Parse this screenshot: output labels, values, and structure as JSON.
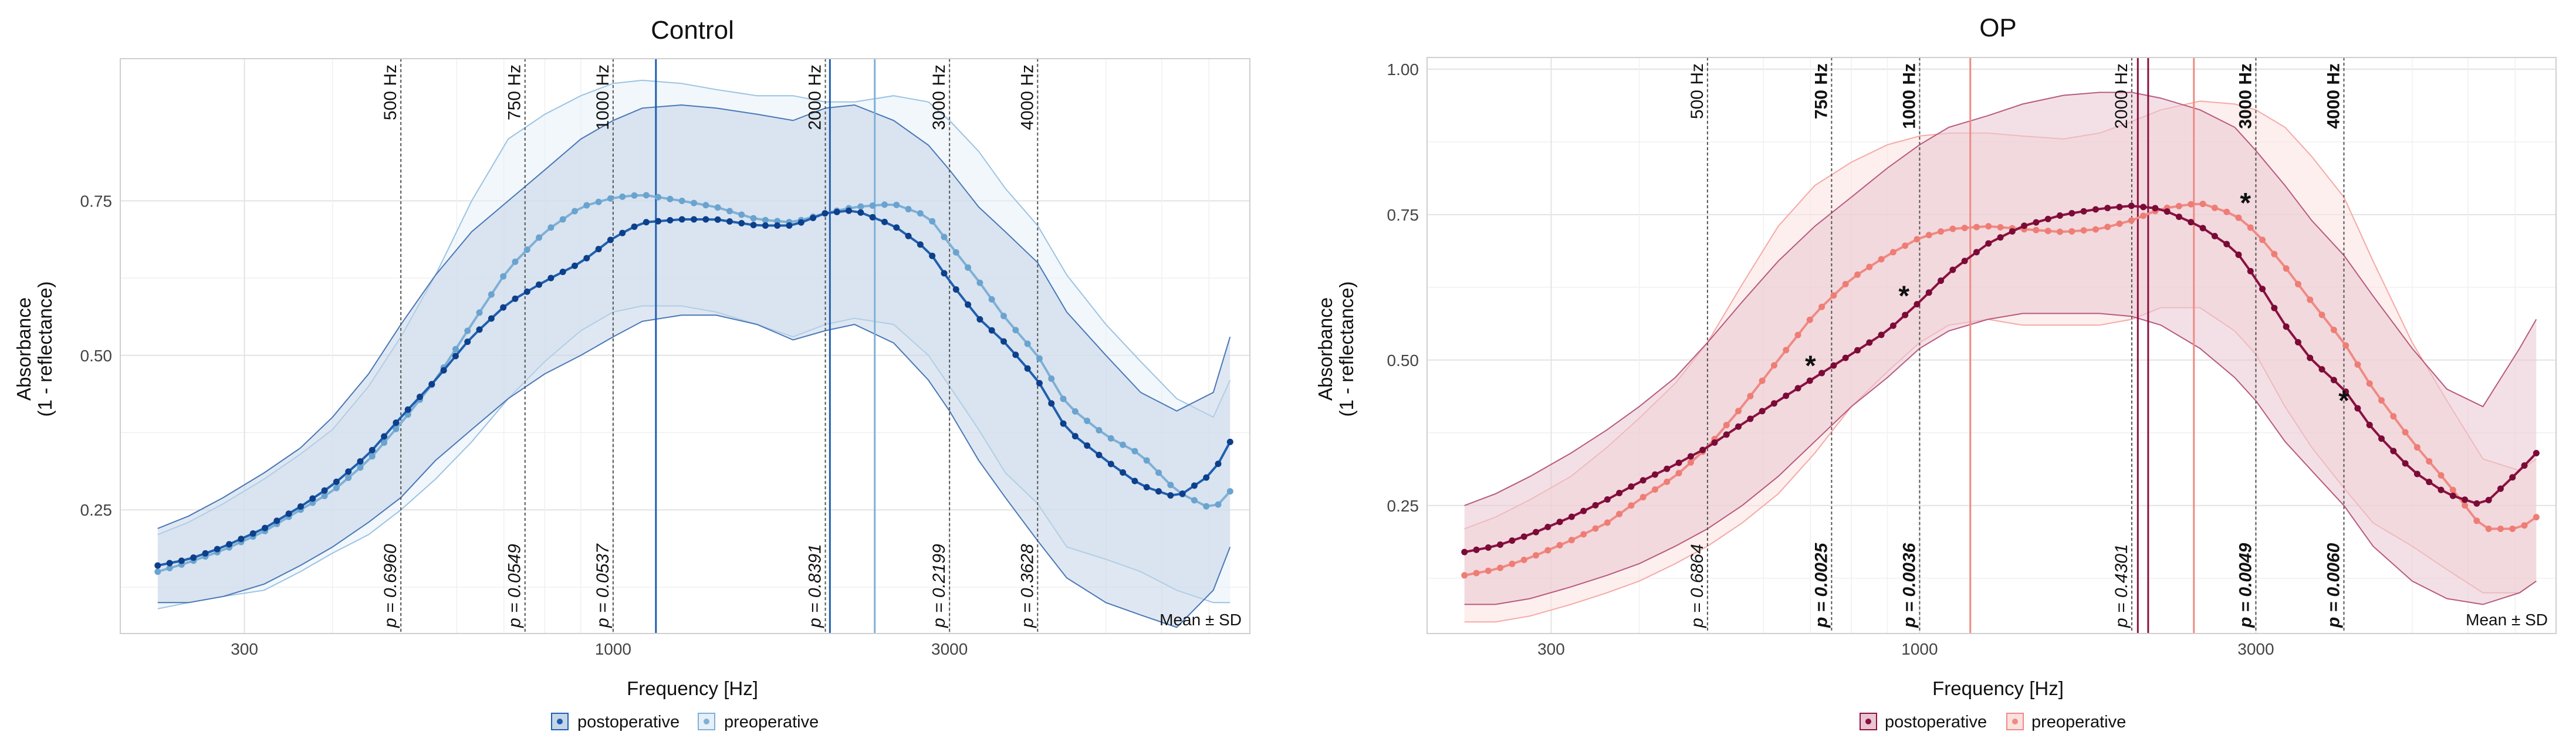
{
  "chart_data": [
    {
      "type": "line",
      "title": "Control",
      "xlabel": "Frequency [Hz]",
      "ylabel_line1": "Absorbance",
      "ylabel_line2": "(1 - reflectance)",
      "x_scale": "log",
      "xlim": [
        200,
        8000
      ],
      "ylim": [
        0.05,
        0.98
      ],
      "x_ticks": [
        {
          "v": 300,
          "label": "300"
        },
        {
          "v": 1000,
          "label": "1000"
        },
        {
          "v": 3000,
          "label": "3000"
        }
      ],
      "y_ticks": [
        {
          "v": 0.25,
          "label": "0.25"
        },
        {
          "v": 0.5,
          "label": "0.50"
        },
        {
          "v": 0.75,
          "label": "0.75"
        }
      ],
      "corner_note": "Mean ± SD",
      "freq_markers": [
        {
          "hz": 500,
          "label": "500 Hz",
          "p": "p = 0.6960",
          "significant": false
        },
        {
          "hz": 750,
          "label": "750 Hz",
          "p": "p = 0.0549",
          "significant": false
        },
        {
          "hz": 1000,
          "label": "1000 Hz",
          "p": "p = 0.0537",
          "significant": false
        },
        {
          "hz": 2000,
          "label": "2000 Hz",
          "p": "p = 0.8391",
          "significant": false
        },
        {
          "hz": 3000,
          "label": "3000 Hz",
          "p": "p = 0.2199",
          "significant": false
        },
        {
          "hz": 4000,
          "label": "4000 Hz",
          "p": "p = 0.3628",
          "significant": false
        }
      ],
      "resonance_lines": [
        {
          "hz": 1150,
          "series": "postoperative"
        },
        {
          "hz": 2030,
          "series": "postoperative"
        },
        {
          "hz": 2350,
          "series": "preoperative"
        }
      ],
      "stars": [],
      "series": [
        {
          "name": "postoperative",
          "line_color": "#1f5fb0",
          "point_color": "#0d3f8a",
          "band_fill": "#c5d6e8",
          "band_edge": "#4a78b8",
          "x": [
            226,
            250,
            280,
            320,
            360,
            400,
            450,
            500,
            560,
            630,
            710,
            800,
            900,
            1000,
            1100,
            1250,
            1400,
            1600,
            1800,
            2000,
            2200,
            2500,
            2800,
            3000,
            3300,
            3600,
            4000,
            4400,
            5000,
            5600,
            6300,
            7100,
            7500
          ],
          "y": [
            0.16,
            0.17,
            0.19,
            0.22,
            0.255,
            0.29,
            0.34,
            0.4,
            0.46,
            0.53,
            0.585,
            0.62,
            0.65,
            0.69,
            0.715,
            0.72,
            0.72,
            0.71,
            0.71,
            0.73,
            0.735,
            0.71,
            0.67,
            0.62,
            0.56,
            0.52,
            0.46,
            0.38,
            0.33,
            0.29,
            0.27,
            0.31,
            0.36
          ],
          "sd_upper": [
            0.22,
            0.24,
            0.27,
            0.31,
            0.35,
            0.4,
            0.47,
            0.55,
            0.63,
            0.7,
            0.75,
            0.8,
            0.85,
            0.88,
            0.9,
            0.905,
            0.9,
            0.89,
            0.88,
            0.9,
            0.905,
            0.88,
            0.84,
            0.8,
            0.74,
            0.7,
            0.65,
            0.57,
            0.5,
            0.44,
            0.41,
            0.44,
            0.53
          ],
          "sd_lower": [
            0.1,
            0.1,
            0.11,
            0.13,
            0.16,
            0.19,
            0.23,
            0.27,
            0.33,
            0.38,
            0.43,
            0.47,
            0.5,
            0.53,
            0.555,
            0.565,
            0.565,
            0.55,
            0.525,
            0.54,
            0.55,
            0.52,
            0.46,
            0.41,
            0.33,
            0.27,
            0.2,
            0.14,
            0.1,
            0.08,
            0.06,
            0.12,
            0.19
          ]
        },
        {
          "name": "preoperative",
          "line_color": "#7fb0d6",
          "point_color": "#6aa3cf",
          "band_fill": "#e6f0f8",
          "band_edge": "#9cc3e3",
          "x": [
            226,
            250,
            280,
            320,
            360,
            400,
            450,
            500,
            560,
            630,
            710,
            800,
            900,
            1000,
            1100,
            1250,
            1400,
            1600,
            1800,
            2000,
            2200,
            2500,
            2800,
            3000,
            3300,
            3600,
            4000,
            4400,
            5000,
            5600,
            6300,
            7100,
            7500
          ],
          "y": [
            0.15,
            0.165,
            0.185,
            0.215,
            0.25,
            0.28,
            0.33,
            0.39,
            0.46,
            0.55,
            0.64,
            0.7,
            0.74,
            0.755,
            0.76,
            0.75,
            0.74,
            0.72,
            0.715,
            0.73,
            0.74,
            0.745,
            0.725,
            0.68,
            0.62,
            0.56,
            0.5,
            0.42,
            0.37,
            0.34,
            0.28,
            0.25,
            0.28
          ],
          "sd_upper": [
            0.21,
            0.23,
            0.26,
            0.3,
            0.34,
            0.38,
            0.45,
            0.53,
            0.63,
            0.75,
            0.85,
            0.89,
            0.92,
            0.94,
            0.945,
            0.94,
            0.93,
            0.92,
            0.92,
            0.91,
            0.91,
            0.92,
            0.91,
            0.88,
            0.83,
            0.77,
            0.71,
            0.63,
            0.55,
            0.49,
            0.43,
            0.4,
            0.46
          ],
          "sd_lower": [
            0.09,
            0.1,
            0.11,
            0.12,
            0.15,
            0.18,
            0.21,
            0.25,
            0.3,
            0.36,
            0.43,
            0.49,
            0.54,
            0.57,
            0.58,
            0.58,
            0.57,
            0.55,
            0.53,
            0.55,
            0.56,
            0.55,
            0.5,
            0.45,
            0.38,
            0.31,
            0.26,
            0.19,
            0.17,
            0.15,
            0.12,
            0.1,
            0.1
          ]
        }
      ]
    },
    {
      "type": "line",
      "title": "OP",
      "xlabel": "Frequency [Hz]",
      "ylabel_line1": "Absorbance",
      "ylabel_line2": "(1 - reflectance)",
      "x_scale": "log",
      "xlim": [
        200,
        8000
      ],
      "ylim": [
        0.03,
        1.02
      ],
      "x_ticks": [
        {
          "v": 300,
          "label": "300"
        },
        {
          "v": 1000,
          "label": "1000"
        },
        {
          "v": 3000,
          "label": "3000"
        }
      ],
      "y_ticks": [
        {
          "v": 0.25,
          "label": "0.25"
        },
        {
          "v": 0.5,
          "label": "0.50"
        },
        {
          "v": 0.75,
          "label": "0.75"
        },
        {
          "v": 1.0,
          "label": "1.00"
        }
      ],
      "corner_note": "Mean ± SD",
      "freq_markers": [
        {
          "hz": 500,
          "label": "500 Hz",
          "p": "p = 0.6864",
          "significant": false
        },
        {
          "hz": 750,
          "label": "750 Hz",
          "p": "p = 0.0025",
          "significant": true
        },
        {
          "hz": 1000,
          "label": "1000 Hz",
          "p": "p = 0.0036",
          "significant": true
        },
        {
          "hz": 2000,
          "label": "2000 Hz",
          "p": "p = 0.4301",
          "significant": false
        },
        {
          "hz": 3000,
          "label": "3000 Hz",
          "p": "p = 0.0049",
          "significant": true
        },
        {
          "hz": 4000,
          "label": "4000 Hz",
          "p": "p = 0.0060",
          "significant": true
        }
      ],
      "resonance_lines": [
        {
          "hz": 1180,
          "series": "preoperative"
        },
        {
          "hz": 2040,
          "series": "postoperative"
        },
        {
          "hz": 2110,
          "series": "postoperative"
        },
        {
          "hz": 2450,
          "series": "preoperative"
        }
      ],
      "stars": [
        {
          "hz": 700,
          "y": 0.49,
          "text": "*"
        },
        {
          "hz": 950,
          "y": 0.61,
          "text": "*"
        },
        {
          "hz": 2900,
          "y": 0.77,
          "text": "*"
        },
        {
          "hz": 4000,
          "y": 0.43,
          "text": "*"
        }
      ],
      "series": [
        {
          "name": "postoperative",
          "line_color": "#8c1040",
          "point_color": "#7a0a36",
          "band_fill": "#eac6d2",
          "band_edge": "#b85a80",
          "x": [
            226,
            250,
            280,
            320,
            360,
            400,
            450,
            500,
            560,
            630,
            710,
            800,
            900,
            1000,
            1100,
            1250,
            1400,
            1600,
            1800,
            2000,
            2200,
            2500,
            2800,
            3000,
            3300,
            3600,
            4000,
            4400,
            5000,
            5600,
            6300,
            7100,
            7500
          ],
          "y": [
            0.17,
            0.18,
            0.2,
            0.23,
            0.26,
            0.29,
            0.32,
            0.35,
            0.39,
            0.43,
            0.47,
            0.51,
            0.55,
            0.6,
            0.65,
            0.7,
            0.73,
            0.75,
            0.76,
            0.765,
            0.76,
            0.73,
            0.69,
            0.64,
            0.56,
            0.5,
            0.45,
            0.38,
            0.31,
            0.27,
            0.25,
            0.31,
            0.34
          ],
          "sd_upper": [
            0.25,
            0.27,
            0.3,
            0.34,
            0.38,
            0.42,
            0.47,
            0.53,
            0.6,
            0.67,
            0.73,
            0.78,
            0.83,
            0.87,
            0.9,
            0.92,
            0.94,
            0.955,
            0.96,
            0.96,
            0.95,
            0.93,
            0.9,
            0.86,
            0.8,
            0.74,
            0.68,
            0.61,
            0.52,
            0.45,
            0.42,
            0.52,
            0.57
          ],
          "sd_lower": [
            0.08,
            0.08,
            0.09,
            0.11,
            0.13,
            0.15,
            0.18,
            0.21,
            0.25,
            0.3,
            0.36,
            0.42,
            0.47,
            0.52,
            0.55,
            0.57,
            0.58,
            0.58,
            0.58,
            0.575,
            0.56,
            0.52,
            0.47,
            0.43,
            0.36,
            0.31,
            0.25,
            0.18,
            0.12,
            0.09,
            0.08,
            0.1,
            0.12
          ]
        },
        {
          "name": "preoperative",
          "line_color": "#ef8a84",
          "point_color": "#ee7d75",
          "band_fill": "#fbe1e0",
          "band_edge": "#f4aaa6",
          "x": [
            226,
            250,
            280,
            320,
            360,
            400,
            450,
            500,
            560,
            630,
            710,
            800,
            900,
            1000,
            1100,
            1250,
            1400,
            1600,
            1800,
            2000,
            2200,
            2500,
            2800,
            3000,
            3300,
            3600,
            4000,
            4400,
            5000,
            5600,
            6300,
            7100,
            7500
          ],
          "y": [
            0.13,
            0.14,
            0.16,
            0.19,
            0.22,
            0.26,
            0.3,
            0.35,
            0.42,
            0.5,
            0.58,
            0.64,
            0.68,
            0.71,
            0.725,
            0.73,
            0.725,
            0.72,
            0.725,
            0.74,
            0.76,
            0.77,
            0.75,
            0.72,
            0.66,
            0.6,
            0.53,
            0.45,
            0.36,
            0.29,
            0.21,
            0.21,
            0.23
          ],
          "sd_upper": [
            0.21,
            0.23,
            0.26,
            0.3,
            0.35,
            0.4,
            0.46,
            0.53,
            0.63,
            0.73,
            0.8,
            0.84,
            0.87,
            0.885,
            0.89,
            0.89,
            0.885,
            0.88,
            0.89,
            0.91,
            0.93,
            0.945,
            0.94,
            0.93,
            0.9,
            0.85,
            0.78,
            0.67,
            0.53,
            0.43,
            0.33,
            0.31,
            0.33
          ],
          "sd_lower": [
            0.05,
            0.05,
            0.06,
            0.08,
            0.1,
            0.12,
            0.15,
            0.18,
            0.22,
            0.27,
            0.34,
            0.42,
            0.48,
            0.53,
            0.56,
            0.57,
            0.56,
            0.56,
            0.56,
            0.57,
            0.59,
            0.59,
            0.55,
            0.51,
            0.42,
            0.35,
            0.28,
            0.22,
            0.18,
            0.14,
            0.1,
            0.1,
            0.12
          ]
        }
      ]
    }
  ],
  "legends": [
    {
      "items": [
        {
          "label": "postoperative",
          "color": "#1f5fb0",
          "fill": "#c5d6e8"
        },
        {
          "label": "preoperative",
          "color": "#7fb0d6",
          "fill": "#e6f0f8"
        }
      ]
    },
    {
      "items": [
        {
          "label": "postoperative",
          "color": "#8c1040",
          "fill": "#eac6d2"
        },
        {
          "label": "preoperative",
          "color": "#ef8a84",
          "fill": "#fbe1e0"
        }
      ]
    }
  ]
}
